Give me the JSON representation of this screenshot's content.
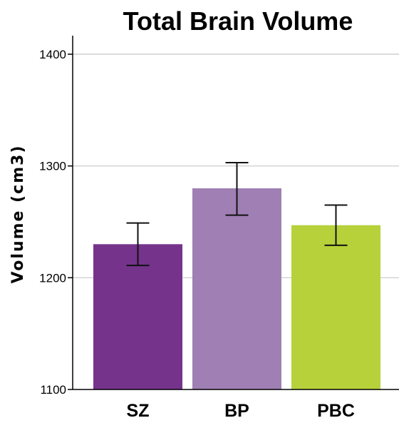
{
  "chart_data": {
    "type": "bar",
    "title": "Total Brain Volume",
    "xlabel": "",
    "ylabel": "Volume (cm3)",
    "ylim": [
      1100,
      1400
    ],
    "yticks": [
      "1100",
      "1200",
      "1300",
      "1400"
    ],
    "grid": true,
    "categories": [
      "SZ",
      "BP",
      "PBC"
    ],
    "values": [
      1230,
      1280,
      1247
    ],
    "error_low": [
      1211,
      1256,
      1229
    ],
    "error_high": [
      1249,
      1303,
      1265
    ],
    "colors": [
      "#75338c",
      "#9f7fb4",
      "#b6d13a"
    ]
  }
}
